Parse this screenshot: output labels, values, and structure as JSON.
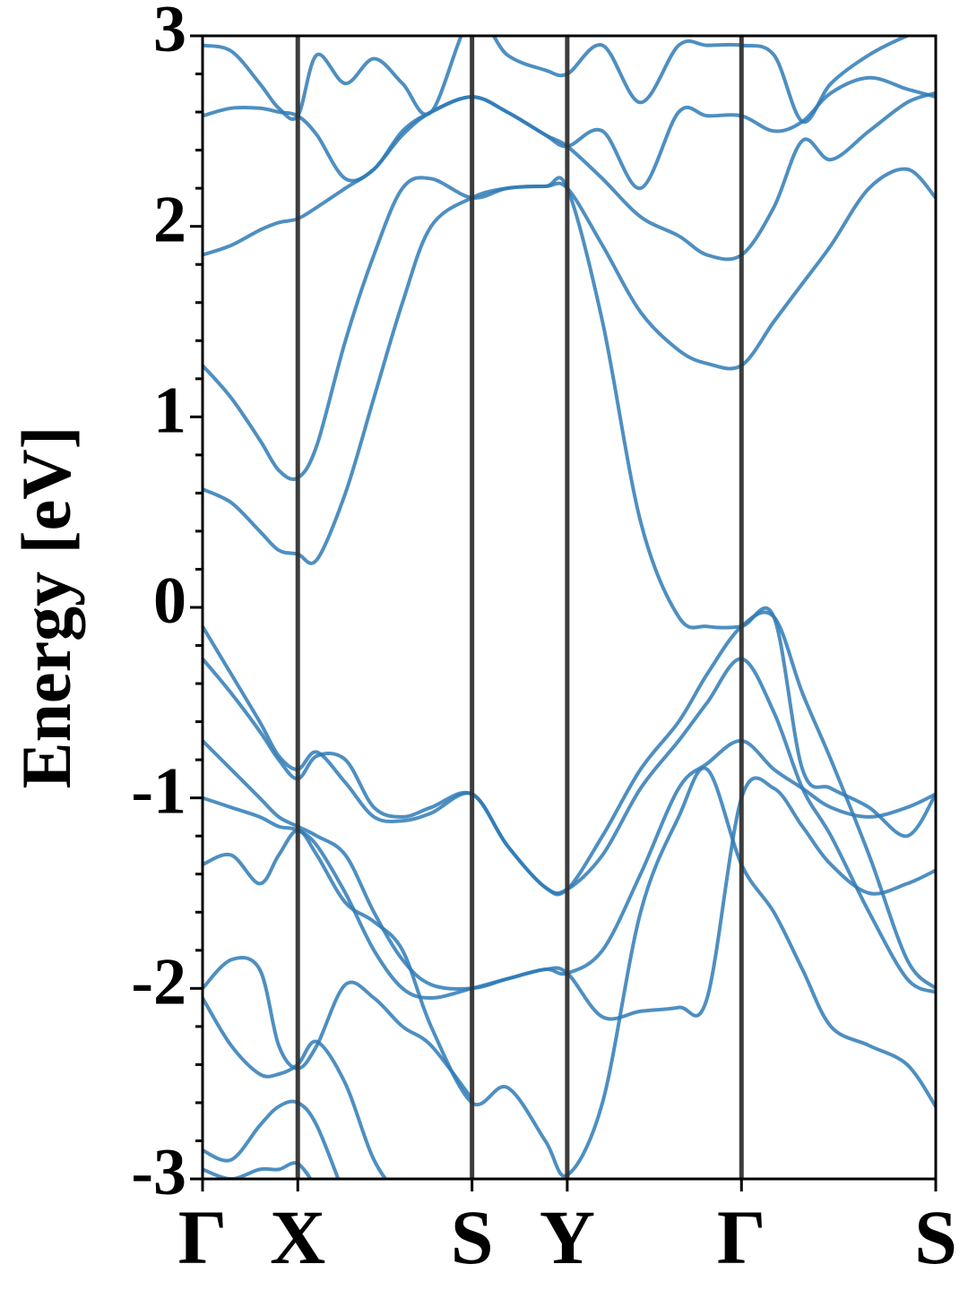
{
  "chart_data": {
    "type": "line",
    "title": "",
    "xlabel": "",
    "ylabel": "Energy [eV]",
    "ylim": [
      -3,
      3
    ],
    "yticks": [
      -3,
      -2,
      -1,
      0,
      1,
      2,
      3
    ],
    "ytick_labels": [
      "-3",
      "-2",
      "-1",
      "0",
      "1",
      "2",
      "3"
    ],
    "xlim": [
      0,
      7.7
    ],
    "kpoints": [
      {
        "label": "Γ",
        "x": 0
      },
      {
        "label": "X",
        "x": 1
      },
      {
        "label": "S",
        "x": 2.83
      },
      {
        "label": "Y",
        "x": 3.83
      },
      {
        "label": "Γ",
        "x": 5.66
      },
      {
        "label": "S",
        "x": 7.7
      }
    ],
    "grid": false,
    "line_color": "#2f7bb6",
    "kpoint_line_color": "#333333",
    "series": [
      {
        "x": [
          0,
          0.3,
          0.6,
          0.8,
          1.0,
          1.2,
          1.5,
          1.8,
          2.1,
          2.4,
          2.83,
          3.2,
          3.6,
          3.83,
          4.2,
          4.6,
          5.0,
          5.3,
          5.66,
          6.0,
          6.3,
          6.6,
          7.0,
          7.4,
          7.7
        ],
        "values": [
          -0.1,
          -0.35,
          -0.6,
          -0.78,
          -0.85,
          -0.76,
          -0.92,
          -1.1,
          -1.12,
          -1.08,
          -0.98,
          -1.25,
          -1.47,
          -1.48,
          -1.2,
          -0.85,
          -0.6,
          -0.35,
          -0.1,
          -0.05,
          -0.45,
          -0.8,
          -1.3,
          -1.85,
          -2.0
        ]
      },
      {
        "x": [
          0,
          0.3,
          0.6,
          0.8,
          1.0,
          1.2,
          1.5,
          1.8,
          2.1,
          2.4,
          2.83,
          3.2,
          3.6,
          3.83,
          4.2,
          4.6,
          5.0,
          5.3,
          5.66,
          6.0,
          6.3,
          6.6,
          7.0,
          7.4,
          7.7
        ],
        "values": [
          -0.27,
          -0.45,
          -0.65,
          -0.8,
          -0.9,
          -0.78,
          -0.8,
          -1.05,
          -1.1,
          -1.05,
          -0.98,
          -1.25,
          -1.47,
          -1.48,
          -1.3,
          -0.95,
          -0.7,
          -0.5,
          -0.27,
          -0.55,
          -0.95,
          -1.2,
          -1.6,
          -1.95,
          -2.02
        ]
      },
      {
        "x": [
          0,
          0.3,
          0.6,
          0.8,
          1.0,
          1.2,
          1.5,
          1.8,
          2.1,
          2.4,
          2.83,
          3.2,
          3.6,
          3.83,
          4.2,
          4.6,
          5.0,
          5.3,
          5.66,
          6.0,
          6.3,
          6.6,
          7.0,
          7.4,
          7.7
        ],
        "values": [
          -0.7,
          -0.85,
          -1.0,
          -1.1,
          -1.15,
          -1.2,
          -1.3,
          -1.6,
          -1.85,
          -1.98,
          -2.0,
          -1.95,
          -1.9,
          -1.92,
          -1.8,
          -1.4,
          -0.95,
          -0.82,
          -0.7,
          -0.85,
          -0.95,
          -1.05,
          -1.1,
          -1.05,
          -0.98
        ]
      },
      {
        "x": [
          0,
          0.3,
          0.6,
          0.8,
          1.0,
          1.2,
          1.5,
          1.8,
          2.1,
          2.4,
          2.83,
          3.2,
          3.6,
          3.83,
          4.2,
          4.6,
          5.0,
          5.3,
          5.66,
          6.0,
          6.3,
          6.6,
          7.0,
          7.4,
          7.7
        ],
        "values": [
          -1.0,
          -1.05,
          -1.1,
          -1.15,
          -1.17,
          -1.25,
          -1.5,
          -1.8,
          -2.0,
          -2.05,
          -2.0,
          -1.95,
          -1.9,
          -1.92,
          -2.15,
          -2.12,
          -2.1,
          -2.05,
          -1.0,
          -0.95,
          -1.15,
          -1.35,
          -1.5,
          -1.45,
          -1.38
        ]
      },
      {
        "x": [
          0,
          0.3,
          0.6,
          0.8,
          1.0,
          1.2,
          1.5,
          1.8,
          2.1,
          2.4,
          2.83,
          3.2,
          3.6,
          3.83,
          4.2,
          4.6,
          5.0,
          5.3,
          5.66,
          6.0,
          6.3,
          6.6,
          7.0,
          7.4,
          7.7
        ],
        "values": [
          -1.35,
          -1.3,
          -1.45,
          -1.3,
          -1.17,
          -1.3,
          -1.55,
          -1.65,
          -1.8,
          -2.2,
          -2.6,
          -2.52,
          -2.8,
          -2.98,
          -2.6,
          -1.6,
          -1.1,
          -0.85,
          -1.35,
          -1.6,
          -1.9,
          -2.2,
          -2.3,
          -2.4,
          -2.62
        ]
      },
      {
        "x": [
          0,
          0.3,
          0.6,
          0.8,
          1.0,
          1.2,
          1.5,
          1.8,
          2.1,
          2.4,
          2.83
        ],
        "values": [
          -2.0,
          -1.85,
          -1.9,
          -2.3,
          -2.42,
          -2.3,
          -1.98,
          -2.05,
          -2.2,
          -2.3,
          -2.58
        ]
      },
      {
        "x": [
          0,
          0.3,
          0.6,
          0.8,
          1.0,
          1.2,
          1.5,
          1.8,
          2.1,
          2.4,
          2.83
        ],
        "values": [
          -2.05,
          -2.3,
          -2.45,
          -2.45,
          -2.4,
          -2.28,
          -2.5,
          -2.9,
          -3.1,
          -3.2,
          -3.3
        ]
      },
      {
        "x": [
          0,
          0.3,
          0.6,
          0.8,
          1.0,
          1.2,
          1.5
        ],
        "values": [
          -2.85,
          -2.9,
          -2.72,
          -2.62,
          -2.6,
          -2.72,
          -3.1
        ]
      },
      {
        "x": [
          0,
          0.3,
          0.6,
          0.8,
          1.0,
          1.2
        ],
        "values": [
          -2.95,
          -3.0,
          -2.95,
          -2.95,
          -2.92,
          -3.05
        ]
      },
      {
        "x": [
          0,
          0.3,
          0.6,
          0.8,
          1.0,
          1.2,
          1.5,
          1.8,
          2.1,
          2.4,
          2.83,
          3.2,
          3.6,
          3.83,
          4.2,
          4.6,
          5.0,
          5.3,
          5.66,
          6.0,
          6.3,
          6.6,
          7.0,
          7.4,
          7.7
        ],
        "values": [
          0.62,
          0.55,
          0.4,
          0.3,
          0.28,
          0.25,
          0.6,
          1.1,
          1.6,
          2.0,
          2.15,
          2.2,
          2.21,
          2.2,
          1.5,
          0.45,
          -0.05,
          -0.1,
          -0.1,
          -0.05,
          -0.85,
          -0.95,
          -1.05,
          -1.2,
          -0.98
        ]
      },
      {
        "x": [
          0,
          0.3,
          0.6,
          0.8,
          1.0,
          1.2,
          1.5,
          1.8,
          2.1,
          2.4,
          2.83,
          3.2,
          3.6,
          3.83,
          4.2,
          4.6,
          5.0,
          5.3,
          5.66,
          6.0,
          6.3,
          6.6,
          7.0,
          7.4,
          7.7
        ],
        "values": [
          1.27,
          1.1,
          0.88,
          0.72,
          0.68,
          0.85,
          1.4,
          1.85,
          2.2,
          2.25,
          2.15,
          2.2,
          2.21,
          2.2,
          1.9,
          1.55,
          1.35,
          1.28,
          1.27,
          1.5,
          1.7,
          1.9,
          2.2,
          2.3,
          2.15
        ]
      },
      {
        "x": [
          0,
          0.3,
          0.6,
          0.8,
          1.0,
          1.2,
          1.5,
          1.8,
          2.1,
          2.4,
          2.83,
          3.2,
          3.6,
          3.83,
          4.2,
          4.6,
          5.0,
          5.3,
          5.66,
          6.0,
          6.3,
          6.6,
          7.0,
          7.4,
          7.7
        ],
        "values": [
          1.85,
          1.9,
          1.98,
          2.02,
          2.04,
          2.1,
          2.2,
          2.3,
          2.48,
          2.6,
          2.68,
          2.6,
          2.48,
          2.42,
          2.25,
          2.05,
          1.95,
          1.85,
          1.85,
          2.1,
          2.45,
          2.35,
          2.5,
          2.65,
          2.7
        ]
      },
      {
        "x": [
          0,
          0.3,
          0.6,
          0.8,
          1.0,
          1.2,
          1.5,
          1.8,
          2.1,
          2.4,
          2.83,
          3.2,
          3.6,
          3.83,
          4.2,
          4.6,
          5.0,
          5.3,
          5.66,
          6.0,
          6.3,
          6.6,
          7.0,
          7.4,
          7.7
        ],
        "values": [
          2.58,
          2.62,
          2.62,
          2.6,
          2.58,
          2.48,
          2.25,
          2.3,
          2.5,
          2.6,
          2.68,
          2.6,
          2.48,
          2.42,
          2.5,
          2.2,
          2.6,
          2.58,
          2.58,
          2.5,
          2.55,
          2.7,
          2.78,
          2.72,
          2.68
        ]
      },
      {
        "x": [
          0,
          0.3,
          0.6,
          0.8,
          1.0,
          1.2,
          1.5,
          1.8,
          2.1,
          2.4,
          2.83,
          3.2,
          3.6,
          3.83,
          4.2,
          4.6,
          5.0,
          5.3,
          5.66,
          6.0,
          6.3,
          6.6,
          7.0,
          7.4,
          7.7
        ],
        "values": [
          2.95,
          2.92,
          2.75,
          2.62,
          2.58,
          2.9,
          2.75,
          2.88,
          2.75,
          2.6,
          3.1,
          2.9,
          2.82,
          2.8,
          2.95,
          2.65,
          2.95,
          2.95,
          2.95,
          2.9,
          2.55,
          2.75,
          2.9,
          3.0,
          3.05
        ]
      }
    ]
  }
}
